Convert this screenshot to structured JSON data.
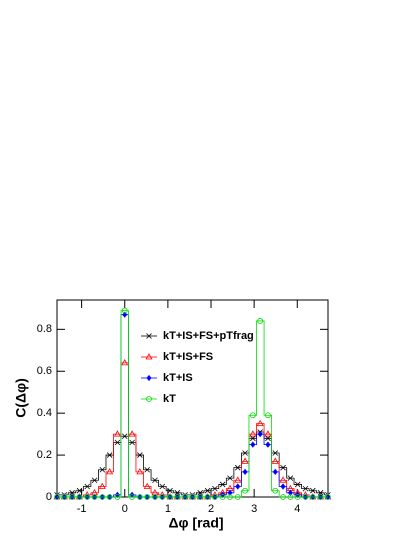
{
  "chart_data": {
    "type": "step",
    "xlabel": "Δφ [rad]",
    "ylabel": "C(Δφ)",
    "x": [
      -1.57,
      -1.4,
      -1.22,
      -1.05,
      -0.87,
      -0.7,
      -0.52,
      -0.35,
      -0.17,
      0,
      0.17,
      0.35,
      0.52,
      0.7,
      0.87,
      1.05,
      1.22,
      1.4,
      1.57,
      1.75,
      1.92,
      2.09,
      2.27,
      2.44,
      2.62,
      2.79,
      2.97,
      3.14,
      3.32,
      3.49,
      3.67,
      3.84,
      4.01,
      4.19,
      4.36,
      4.54,
      4.71
    ],
    "series": [
      {
        "name": "kT+IS+FS+pTfrag",
        "color": "#000000",
        "marker": "x",
        "values": [
          0.01,
          0.01,
          0.02,
          0.03,
          0.05,
          0.08,
          0.13,
          0.2,
          0.26,
          0.29,
          0.26,
          0.2,
          0.13,
          0.08,
          0.05,
          0.03,
          0.02,
          0.01,
          0.01,
          0.02,
          0.03,
          0.04,
          0.06,
          0.09,
          0.14,
          0.21,
          0.28,
          0.31,
          0.28,
          0.21,
          0.14,
          0.09,
          0.06,
          0.04,
          0.03,
          0.02,
          0.01
        ]
      },
      {
        "name": "kT+IS+FS",
        "color": "#ff0000",
        "marker": "triangle",
        "values": [
          0,
          0,
          0,
          0,
          0.01,
          0.02,
          0.05,
          0.12,
          0.3,
          0.64,
          0.3,
          0.12,
          0.05,
          0.02,
          0.01,
          0,
          0,
          0,
          0,
          0,
          0,
          0.01,
          0.02,
          0.04,
          0.08,
          0.17,
          0.3,
          0.35,
          0.3,
          0.17,
          0.08,
          0.04,
          0.02,
          0.01,
          0,
          0,
          0
        ]
      },
      {
        "name": "kT+IS",
        "color": "#0000ff",
        "marker": "diamond",
        "values": [
          0,
          0,
          0,
          0,
          0,
          0,
          0,
          0,
          0.01,
          0.87,
          0.01,
          0,
          0,
          0,
          0,
          0,
          0,
          0,
          0,
          0,
          0,
          0,
          0.01,
          0.02,
          0.05,
          0.12,
          0.25,
          0.3,
          0.25,
          0.12,
          0.05,
          0.02,
          0.01,
          0,
          0,
          0,
          0
        ]
      },
      {
        "name": "kT",
        "color": "#00dd00",
        "marker": "circle",
        "values": [
          0,
          0,
          0,
          0,
          0,
          0,
          0,
          0,
          0,
          0.89,
          0,
          0,
          0,
          0,
          0,
          0,
          0,
          0,
          0,
          0,
          0,
          0,
          0,
          0,
          0,
          0.03,
          0.39,
          0.84,
          0.39,
          0.03,
          0,
          0,
          0,
          0,
          0,
          0,
          0
        ]
      }
    ],
    "xlim": [
      -1.5708,
      4.7124
    ],
    "ylim": [
      0,
      0.94
    ],
    "xticks": [
      -1,
      0,
      1,
      2,
      3,
      4
    ],
    "yticks": [
      0,
      0.2,
      0.4,
      0.6,
      0.8
    ]
  }
}
